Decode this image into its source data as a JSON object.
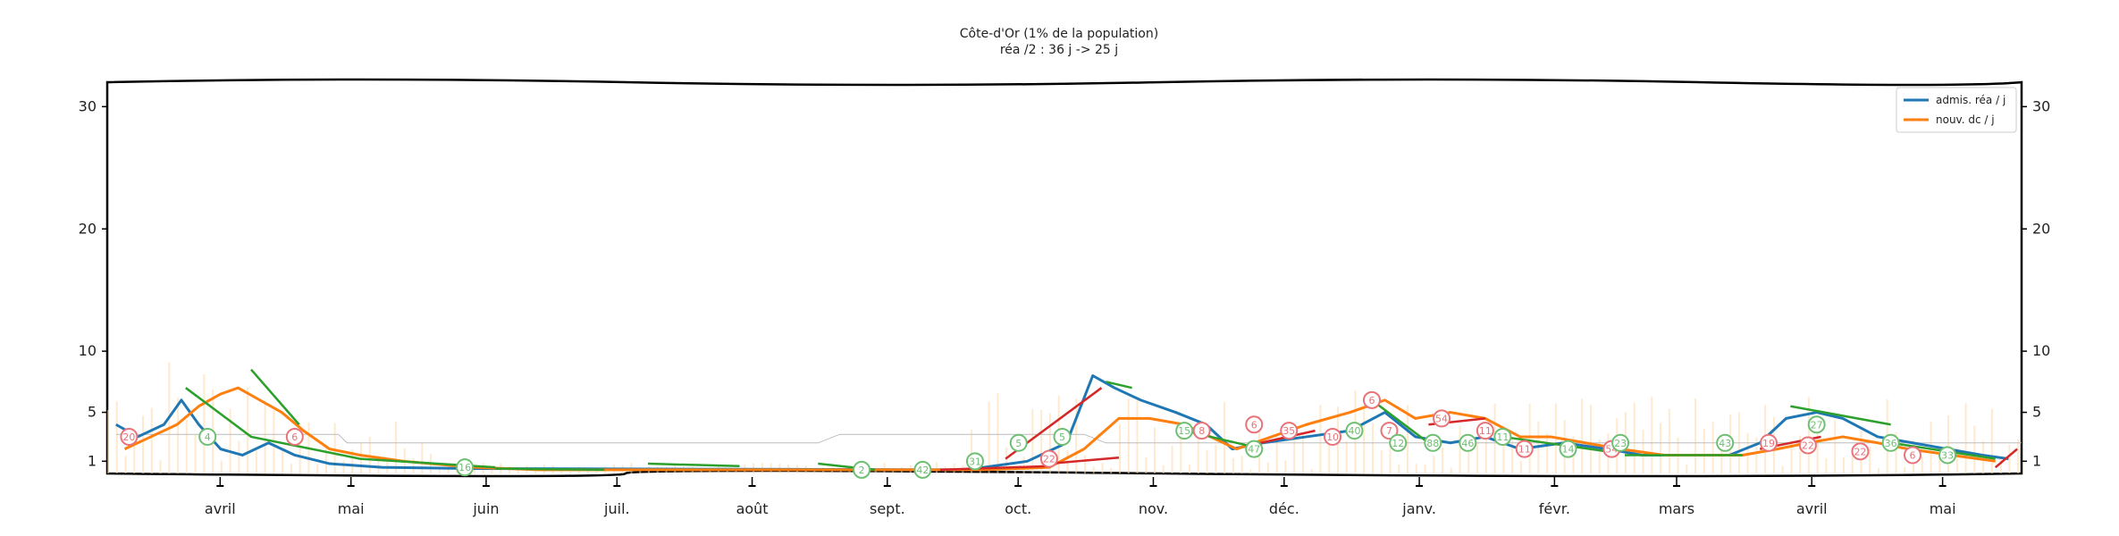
{
  "chart_data": {
    "type": "line",
    "title": "Côte-d'Or (1% de la population)",
    "subtitle": "réa /2 : 36 j -> 25 j",
    "xlabel": "",
    "ylabel": "",
    "ylim": [
      0,
      32
    ],
    "yticks": [
      1,
      5,
      10,
      20,
      30
    ],
    "ytick_labels": [
      "1",
      "5",
      "10",
      "20",
      "30"
    ],
    "x_range": [
      "2020-03-18",
      "2021-05-31"
    ],
    "months": [
      {
        "label": "avril",
        "date": "2020-04-01"
      },
      {
        "label": "mai",
        "date": "2020-05-01"
      },
      {
        "label": "juin",
        "date": "2020-06-01"
      },
      {
        "label": "juil.",
        "date": "2020-07-01"
      },
      {
        "label": "août",
        "date": "2020-08-01"
      },
      {
        "label": "sept.",
        "date": "2020-09-01"
      },
      {
        "label": "oct.",
        "date": "2020-10-01"
      },
      {
        "label": "nov.",
        "date": "2020-11-01"
      },
      {
        "label": "déc.",
        "date": "2020-12-01"
      },
      {
        "label": "janv.",
        "date": "2021-01-01"
      },
      {
        "label": "févr.",
        "date": "2021-02-01"
      },
      {
        "label": "mars",
        "date": "2021-03-01"
      },
      {
        "label": "avril",
        "date": "2021-04-01"
      },
      {
        "label": "mai",
        "date": "2021-05-01"
      }
    ],
    "legend": {
      "position": "top-right",
      "entries": [
        {
          "label": "admis. réa / j",
          "color": "#1f77b4"
        },
        {
          "label": "nouv. dc / j",
          "color": "#ff7f0e"
        }
      ]
    },
    "series": [
      {
        "name": "admis. réa / j",
        "color": "#1f77b4",
        "points": [
          [
            "2020-03-20",
            4
          ],
          [
            "2020-03-25",
            3
          ],
          [
            "2020-03-31",
            4
          ],
          [
            "2020-04-04",
            6
          ],
          [
            "2020-04-08",
            4
          ],
          [
            "2020-04-13",
            2
          ],
          [
            "2020-04-18",
            1.5
          ],
          [
            "2020-04-24",
            2.5
          ],
          [
            "2020-04-30",
            1.5
          ],
          [
            "2020-05-08",
            0.8
          ],
          [
            "2020-05-20",
            0.5
          ],
          [
            "2020-06-10",
            0.4
          ],
          [
            "2020-10-01",
            0.3
          ],
          [
            "2020-10-15",
            1
          ],
          [
            "2020-10-24",
            2.5
          ],
          [
            "2020-10-30",
            8
          ],
          [
            "2020-11-04",
            7
          ],
          [
            "2020-11-10",
            6
          ],
          [
            "2020-11-18",
            5
          ],
          [
            "2020-11-25",
            4
          ],
          [
            "2020-12-01",
            2
          ],
          [
            "2020-12-08",
            2.5
          ],
          [
            "2020-12-18",
            3
          ],
          [
            "2020-12-28",
            3.5
          ],
          [
            "2021-01-05",
            5
          ],
          [
            "2021-01-12",
            3
          ],
          [
            "2021-01-20",
            2.5
          ],
          [
            "2021-01-28",
            3
          ],
          [
            "2021-02-05",
            2
          ],
          [
            "2021-02-15",
            2.5
          ],
          [
            "2021-02-25",
            2
          ],
          [
            "2021-03-05",
            1.5
          ],
          [
            "2021-03-15",
            1.5
          ],
          [
            "2021-03-25",
            1.5
          ],
          [
            "2021-04-01",
            2.5
          ],
          [
            "2021-04-07",
            4.5
          ],
          [
            "2021-04-14",
            5
          ],
          [
            "2021-04-20",
            4.5
          ],
          [
            "2021-04-28",
            3
          ],
          [
            "2021-05-06",
            2.5
          ],
          [
            "2021-05-14",
            2
          ],
          [
            "2021-05-22",
            1.5
          ],
          [
            "2021-05-28",
            1.2
          ]
        ]
      },
      {
        "name": "nouv. dc / j",
        "color": "#ff7f0e",
        "points": [
          [
            "2020-03-22",
            2
          ],
          [
            "2020-03-28",
            3
          ],
          [
            "2020-04-03",
            4
          ],
          [
            "2020-04-08",
            5.5
          ],
          [
            "2020-04-13",
            6.5
          ],
          [
            "2020-04-17",
            7
          ],
          [
            "2020-04-22",
            6
          ],
          [
            "2020-04-27",
            5
          ],
          [
            "2020-05-02",
            3.5
          ],
          [
            "2020-05-08",
            2
          ],
          [
            "2020-05-15",
            1.5
          ],
          [
            "2020-05-25",
            1
          ],
          [
            "2020-06-10",
            0.5
          ],
          [
            "2020-06-25",
            0.3
          ],
          [
            "2020-10-05",
            0.3
          ],
          [
            "2020-10-20",
            0.5
          ],
          [
            "2020-10-28",
            2
          ],
          [
            "2020-11-05",
            4.5
          ],
          [
            "2020-11-12",
            4.5
          ],
          [
            "2020-11-20",
            4
          ],
          [
            "2020-12-02",
            2
          ],
          [
            "2020-12-10",
            3
          ],
          [
            "2020-12-18",
            4
          ],
          [
            "2020-12-28",
            5
          ],
          [
            "2021-01-05",
            6
          ],
          [
            "2021-01-12",
            4.5
          ],
          [
            "2021-01-20",
            5
          ],
          [
            "2021-01-28",
            4.5
          ],
          [
            "2021-02-05",
            3
          ],
          [
            "2021-02-12",
            3
          ],
          [
            "2021-02-20",
            2.5
          ],
          [
            "2021-02-28",
            2
          ],
          [
            "2021-03-10",
            1.5
          ],
          [
            "2021-03-20",
            1.5
          ],
          [
            "2021-03-28",
            1.5
          ],
          [
            "2021-04-05",
            2
          ],
          [
            "2021-04-12",
            2.5
          ],
          [
            "2021-04-20",
            3
          ],
          [
            "2021-04-28",
            2.5
          ],
          [
            "2021-05-05",
            2
          ],
          [
            "2021-05-15",
            1.5
          ],
          [
            "2021-05-25",
            1
          ]
        ]
      }
    ],
    "badges": [
      {
        "date": "2020-03-23",
        "y": 3,
        "label": "20",
        "color": "#e8737a"
      },
      {
        "date": "2020-04-10",
        "y": 3,
        "label": "4",
        "color": "#6fbf73"
      },
      {
        "date": "2020-04-30",
        "y": 3,
        "label": "6",
        "color": "#e8737a"
      },
      {
        "date": "2020-06-08",
        "y": 0.5,
        "label": "16",
        "color": "#6fbf73"
      },
      {
        "date": "2020-09-07",
        "y": 0.3,
        "label": "2",
        "color": "#6fbf73"
      },
      {
        "date": "2020-09-21",
        "y": 0.3,
        "label": "42",
        "color": "#6fbf73"
      },
      {
        "date": "2020-10-03",
        "y": 1,
        "label": "31",
        "color": "#6fbf73"
      },
      {
        "date": "2020-10-20",
        "y": 1.2,
        "label": "22",
        "color": "#e8737a"
      },
      {
        "date": "2020-10-13",
        "y": 2.5,
        "label": "5",
        "color": "#6fbf73"
      },
      {
        "date": "2020-10-23",
        "y": 3,
        "label": "5",
        "color": "#6fbf73"
      },
      {
        "date": "2020-11-20",
        "y": 3.5,
        "label": "15",
        "color": "#6fbf73"
      },
      {
        "date": "2020-11-24",
        "y": 3.5,
        "label": "8",
        "color": "#e8737a"
      },
      {
        "date": "2020-12-06",
        "y": 2,
        "label": "47",
        "color": "#6fbf73"
      },
      {
        "date": "2020-12-06",
        "y": 4,
        "label": "6",
        "color": "#e8737a"
      },
      {
        "date": "2020-12-14",
        "y": 3.5,
        "label": "35",
        "color": "#e8737a"
      },
      {
        "date": "2020-12-24",
        "y": 3,
        "label": "10",
        "color": "#e8737a"
      },
      {
        "date": "2020-12-29",
        "y": 3.5,
        "label": "40",
        "color": "#6fbf73"
      },
      {
        "date": "2021-01-02",
        "y": 6,
        "label": "6",
        "color": "#e8737a"
      },
      {
        "date": "2021-01-06",
        "y": 3.5,
        "label": "7",
        "color": "#e8737a"
      },
      {
        "date": "2021-01-08",
        "y": 2.5,
        "label": "12",
        "color": "#6fbf73"
      },
      {
        "date": "2021-01-16",
        "y": 2.5,
        "label": "88",
        "color": "#6fbf73"
      },
      {
        "date": "2021-01-18",
        "y": 4.5,
        "label": "54",
        "color": "#e8737a"
      },
      {
        "date": "2021-01-24",
        "y": 2.5,
        "label": "46",
        "color": "#6fbf73"
      },
      {
        "date": "2021-01-28",
        "y": 3.5,
        "label": "11",
        "color": "#e8737a"
      },
      {
        "date": "2021-02-01",
        "y": 3,
        "label": "11",
        "color": "#6fbf73"
      },
      {
        "date": "2021-02-06",
        "y": 2,
        "label": "11",
        "color": "#e8737a"
      },
      {
        "date": "2021-02-16",
        "y": 2,
        "label": "14",
        "color": "#6fbf73"
      },
      {
        "date": "2021-02-26",
        "y": 2,
        "label": "54",
        "color": "#e8737a"
      },
      {
        "date": "2021-02-28",
        "y": 2.5,
        "label": "23",
        "color": "#6fbf73"
      },
      {
        "date": "2021-03-24",
        "y": 2.5,
        "label": "43",
        "color": "#6fbf73"
      },
      {
        "date": "2021-04-03",
        "y": 2.5,
        "label": "19",
        "color": "#e8737a"
      },
      {
        "date": "2021-04-14",
        "y": 4,
        "label": "27",
        "color": "#6fbf73"
      },
      {
        "date": "2021-04-12",
        "y": 2.3,
        "label": "22",
        "color": "#e8737a"
      },
      {
        "date": "2021-04-24",
        "y": 1.8,
        "label": "22",
        "color": "#e8737a"
      },
      {
        "date": "2021-05-01",
        "y": 2.5,
        "label": "36",
        "color": "#6fbf73"
      },
      {
        "date": "2021-05-06",
        "y": 1.5,
        "label": "6",
        "color": "#e8737a"
      },
      {
        "date": "2021-05-14",
        "y": 1.5,
        "label": "33",
        "color": "#6fbf73"
      }
    ]
  }
}
